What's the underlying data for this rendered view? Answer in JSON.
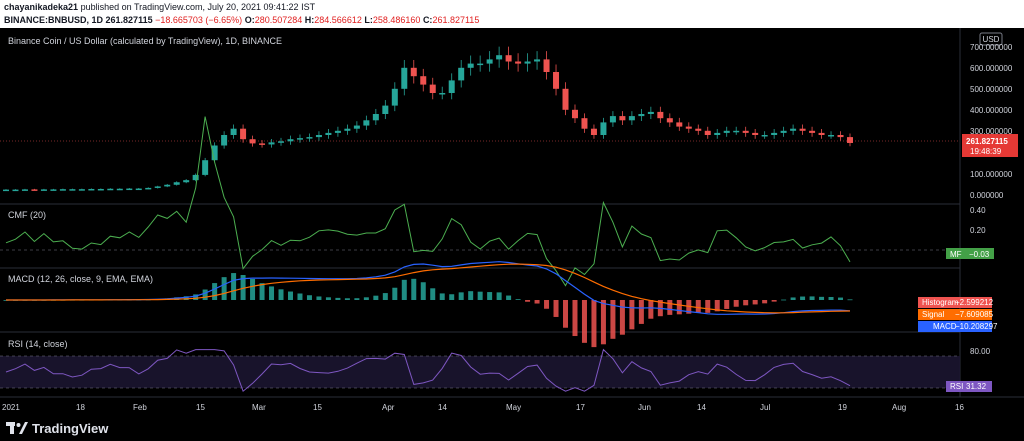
{
  "header": {
    "author": "chayanikadeka21",
    "published": "published on TradingView.com, July 20, 2021 09:41:22 IST",
    "symbol": "BINANCE:BNBUSD, 1D",
    "last": "261.827115",
    "change": "−18.665703 (−6.65%)",
    "o_label": "O:",
    "o": "280.507284",
    "h_label": "H:",
    "h": "284.566612",
    "l_label": "L:",
    "l": "258.486160",
    "c_label": "C:",
    "c": "261.827115"
  },
  "main": {
    "title": "Binance Coin / US Dollar (calculated by TradingView), 1D, BINANCE",
    "currency": "USD",
    "price_ticks": [
      "700.000000",
      "600.000000",
      "500.000000",
      "400.000000",
      "300.000000",
      "100.000000",
      "0.000000"
    ],
    "price_badge": "261.827115",
    "countdown": "19:48:39"
  },
  "cmf": {
    "title": "CMF (20)",
    "ticks": [
      "0.40",
      "0.20"
    ],
    "badge_label": "MF",
    "badge_value": "−0.03"
  },
  "macd": {
    "title": "MACD (12, 26, close, 9, EMA, EMA)",
    "histogram_label": "Histogram",
    "histogram_value": "−2.599212",
    "signal_label": "Signal",
    "signal_value": "−7.609085",
    "macd_label": "MACD",
    "macd_value": "−10.208297"
  },
  "rsi": {
    "title": "RSI (14, close)",
    "ticks": [
      "80.00"
    ],
    "badge_label": "RSI",
    "badge_value": "31.32"
  },
  "xaxis": [
    "2021",
    "18",
    "Feb",
    "15",
    "Mar",
    "15",
    "Apr",
    "14",
    "May",
    "17",
    "Jun",
    "14",
    "Jul",
    "19",
    "Aug",
    "16"
  ],
  "footer": {
    "brand": "TradingView"
  },
  "colors": {
    "up": "#26a69a",
    "down": "#ef5350",
    "cmf": "#4caf50",
    "macd": "#2962ff",
    "signal": "#ff6d00",
    "rsi": "#7e57c2",
    "badge_red": "#e53935"
  },
  "chart_data": {
    "type": "candlestick",
    "price_close_approx": [
      40,
      40,
      41,
      40,
      41,
      41,
      42,
      42,
      42,
      43,
      43,
      44,
      44,
      45,
      45,
      48,
      55,
      63,
      75,
      85,
      110,
      180,
      250,
      300,
      330,
      280,
      260,
      255,
      265,
      270,
      280,
      285,
      290,
      300,
      310,
      320,
      330,
      345,
      370,
      400,
      440,
      520,
      620,
      580,
      540,
      500,
      500,
      560,
      620,
      640,
      640,
      660,
      680,
      650,
      640,
      650,
      660,
      600,
      520,
      420,
      380,
      330,
      300,
      360,
      390,
      370,
      390,
      400,
      410,
      380,
      360,
      340,
      330,
      320,
      300,
      310,
      320,
      320,
      310,
      300,
      300,
      310,
      320,
      330,
      320,
      310,
      300,
      300,
      290,
      262
    ]
  }
}
